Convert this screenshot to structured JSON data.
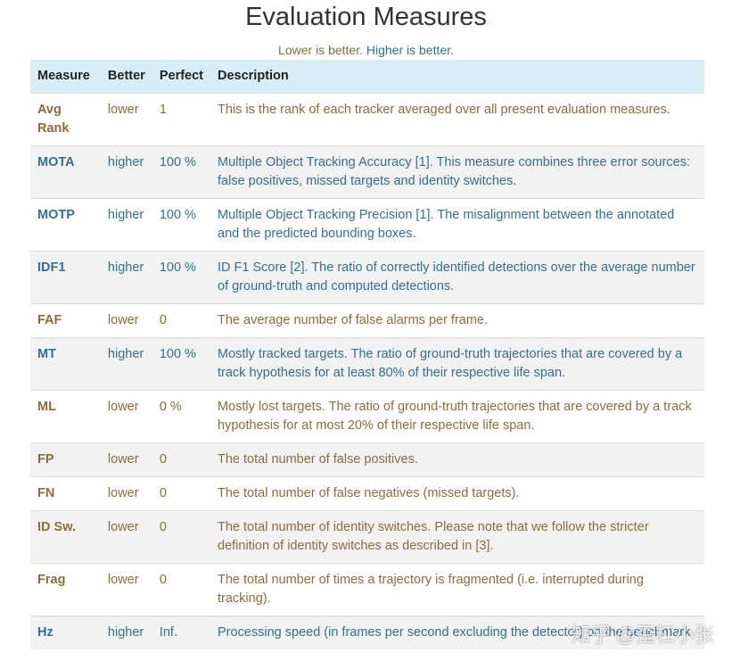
{
  "header": {
    "title": "Evaluation Measures",
    "subtitle_lower": "Lower is better.",
    "subtitle_higher": "Higher is better.",
    "lower_color": "#8a6d3b",
    "higher_color": "#31708f"
  },
  "table": {
    "columns": [
      "Measure",
      "Better",
      "Perfect",
      "Description"
    ],
    "rows": [
      {
        "cells": [
          "Avg Rank",
          "lower",
          "1",
          "This is the rank of each tracker averaged over all present evaluation measures."
        ],
        "color": "#8a6d3b"
      },
      {
        "cells": [
          "MOTA",
          "higher",
          "100 %",
          "Multiple Object Tracking Accuracy [1]. This measure combines three error sources: false positives, missed targets and identity switches."
        ],
        "color": "#31708f"
      },
      {
        "cells": [
          "MOTP",
          "higher",
          "100 %",
          "Multiple Object Tracking Precision [1]. The misalignment between the annotated and the predicted bounding boxes."
        ],
        "color": "#31708f"
      },
      {
        "cells": [
          "IDF1",
          "higher",
          "100 %",
          "ID F1 Score [2]. The ratio of correctly identified detections over the average number of ground-truth and computed detections."
        ],
        "color": "#31708f"
      },
      {
        "cells": [
          "FAF",
          "lower",
          "0",
          "The average number of false alarms per frame."
        ],
        "color": "#8a6d3b"
      },
      {
        "cells": [
          "MT",
          "higher",
          "100 %",
          "Mostly tracked targets. The ratio of ground-truth trajectories that are covered by a track hypothesis for at least 80% of their respective life span."
        ],
        "color": "#31708f"
      },
      {
        "cells": [
          "ML",
          "lower",
          "0 %",
          "Mostly lost targets. The ratio of ground-truth trajectories that are covered by a track hypothesis for at most 20% of their respective life span."
        ],
        "color": "#8a6d3b"
      },
      {
        "cells": [
          "FP",
          "lower",
          "0",
          "The total number of false positives."
        ],
        "color": "#8a6d3b"
      },
      {
        "cells": [
          "FN",
          "lower",
          "0",
          "The total number of false negatives (missed targets)."
        ],
        "color": "#8a6d3b"
      },
      {
        "cells": [
          "ID Sw.",
          "lower",
          "0",
          "The total number of identity switches. Please note that we follow the stricter definition of identity switches as described in [3]."
        ],
        "color": "#8a6d3b"
      },
      {
        "cells": [
          "Frag",
          "lower",
          "0",
          "The total number of times a trajectory is fragmented (i.e. interrupted during tracking)."
        ],
        "color": "#8a6d3b"
      },
      {
        "cells": [
          "Hz",
          "higher",
          "Inf.",
          "Processing speed (in frames per second excluding the detector) on the benchmark."
        ],
        "color": "#31708f"
      }
    ]
  },
  "watermark": "知乎 @歪杠小张"
}
